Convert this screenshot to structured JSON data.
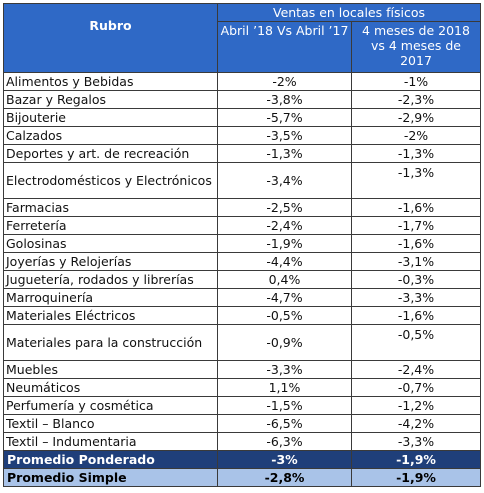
{
  "header": {
    "rubro": "Rubro",
    "group": "Ventas en locales físicos",
    "col1": "Abril ’18 Vs Abril ’17",
    "col2": "4 meses de 2018 vs 4 meses de 2017"
  },
  "rows": [
    {
      "rubro": "Alimentos y Bebidas",
      "abril": "-2%",
      "cuatro": "-1%"
    },
    {
      "rubro": "Bazar y Regalos",
      "abril": "-3,8%",
      "cuatro": "-2,3%"
    },
    {
      "rubro": "Bijouterie",
      "abril": "-5,7%",
      "cuatro": "-2,9%"
    },
    {
      "rubro": "Calzados",
      "abril": "-3,5%",
      "cuatro": "-2%"
    },
    {
      "rubro": "Deportes y art. de recreación",
      "abril": "-1,3%",
      "cuatro": "-1,3%"
    },
    {
      "rubro": "Electrodomésticos y Electrónicos",
      "abril": "-3,4%",
      "cuatro": "-1,3%"
    },
    {
      "rubro": "Farmacias",
      "abril": "-2,5%",
      "cuatro": "-1,6%"
    },
    {
      "rubro": "Ferretería",
      "abril": "-2,4%",
      "cuatro": "-1,7%"
    },
    {
      "rubro": "Golosinas",
      "abril": "-1,9%",
      "cuatro": "-1,6%"
    },
    {
      "rubro": "Joyerías y Relojerías",
      "abril": "-4,4%",
      "cuatro": "-3,1%"
    },
    {
      "rubro": "Juguetería, rodados y librerías",
      "abril": "0,4%",
      "cuatro": "-0,3%"
    },
    {
      "rubro": "Marroquinería",
      "abril": "-4,7%",
      "cuatro": "-3,3%"
    },
    {
      "rubro": "Materiales Eléctricos",
      "abril": "-0,5%",
      "cuatro": "-1,6%"
    },
    {
      "rubro": "Materiales para la construcción",
      "abril": "-0,9%",
      "cuatro": "-0,5%"
    },
    {
      "rubro": "Muebles",
      "abril": "-3,3%",
      "cuatro": "-2,4%"
    },
    {
      "rubro": "Neumáticos",
      "abril": "1,1%",
      "cuatro": "-0,7%"
    },
    {
      "rubro": "Perfumería y cosmética",
      "abril": "-1,5%",
      "cuatro": "-1,2%"
    },
    {
      "rubro": "Textil – Blanco",
      "abril": "-6,5%",
      "cuatro": "-4,2%"
    },
    {
      "rubro": "Textil – Indumentaria",
      "abril": "-6,3%",
      "cuatro": "-3,3%"
    }
  ],
  "totals": {
    "ponderado": {
      "label": "Promedio Ponderado",
      "abril": "-3%",
      "cuatro": "-1,9%"
    },
    "simple": {
      "label": "Promedio Simple",
      "abril": "-2,8%",
      "cuatro": "-1,9%"
    }
  },
  "colors": {
    "header_bg": "#2f69c6",
    "ponderado_bg": "#1f3f7a",
    "simple_bg": "#a9c3e8"
  }
}
